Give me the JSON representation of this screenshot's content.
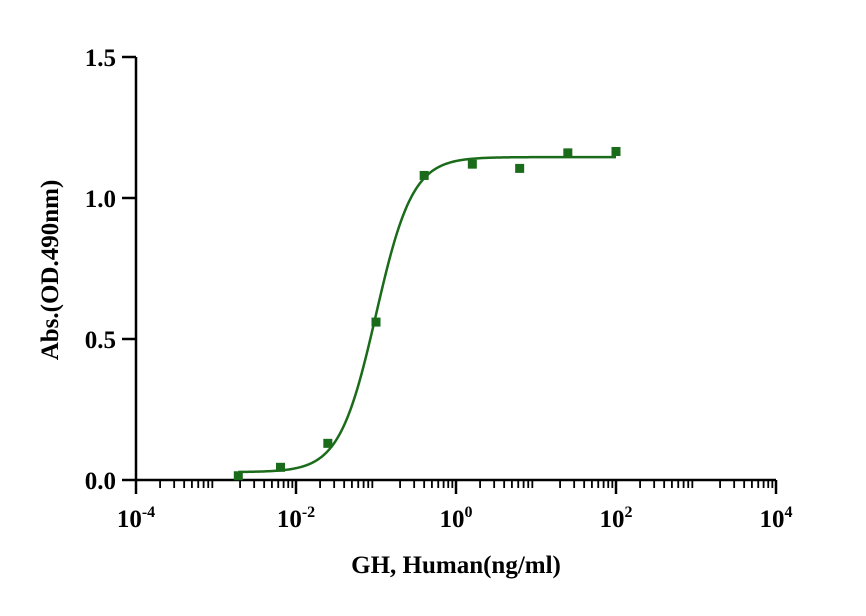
{
  "chart_data": {
    "type": "scatter",
    "title": "",
    "xlabel": "GH, Human(ng/ml)",
    "ylabel": "Abs.(OD.490nm)",
    "x_scale": "log10",
    "xlim": [
      0.0001,
      10000
    ],
    "ylim": [
      0,
      1.5
    ],
    "x_ticks": [
      {
        "value": 0.0001,
        "base": "10",
        "exp": "-4"
      },
      {
        "value": 0.01,
        "base": "10",
        "exp": "-2"
      },
      {
        "value": 1,
        "base": "10",
        "exp": "0"
      },
      {
        "value": 100,
        "base": "10",
        "exp": "2"
      },
      {
        "value": 10000,
        "base": "10",
        "exp": "4"
      }
    ],
    "y_ticks": [
      {
        "value": 0,
        "label": "0.0"
      },
      {
        "value": 0.5,
        "label": "0.5"
      },
      {
        "value": 1.0,
        "label": "1.0"
      },
      {
        "value": 1.5,
        "label": "1.5"
      }
    ],
    "grid": false,
    "legend": "none",
    "series_color": "#1a6b1a",
    "series": [
      {
        "x": [
          0.0019,
          0.0064,
          0.025,
          0.1,
          0.4,
          1.6,
          6.25,
          25,
          100
        ],
        "y": [
          0.015,
          0.045,
          0.13,
          0.56,
          1.08,
          1.12,
          1.105,
          1.16,
          1.165
        ]
      }
    ],
    "fit": {
      "type": "4PL",
      "bottom": 0.028,
      "top": 1.145,
      "ec50": 0.1,
      "hill": 1.9,
      "x_range": [
        0.0019,
        100
      ]
    }
  }
}
